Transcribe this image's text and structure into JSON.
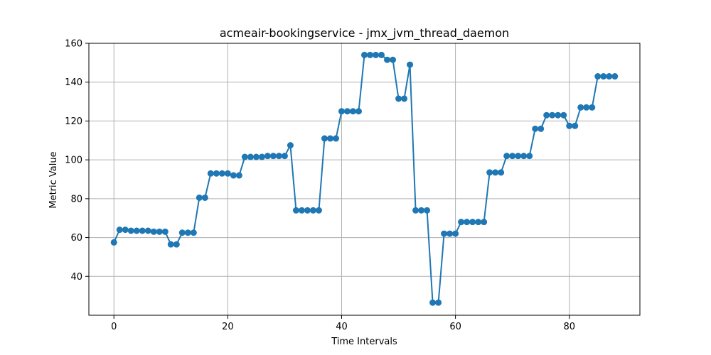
{
  "chart_data": {
    "type": "line",
    "title": "acmeair-bookingservice - jmx_jvm_thread_daemon",
    "xlabel": "Time Intervals",
    "ylabel": "Metric Value",
    "xlim": [
      -4.4,
      92.4
    ],
    "ylim": [
      20,
      160
    ],
    "xticks": [
      0,
      20,
      40,
      60,
      80
    ],
    "yticks": [
      40,
      60,
      80,
      100,
      120,
      140,
      160
    ],
    "grid": true,
    "marker": "circle",
    "color": "#1f77b4",
    "series": [
      {
        "x": [
          0,
          1,
          2,
          3,
          4,
          5,
          6,
          7,
          8,
          9,
          10,
          11,
          12,
          13,
          14,
          15,
          16,
          17,
          18,
          19,
          20,
          21,
          22,
          23,
          24,
          25,
          26,
          27,
          28,
          29,
          30,
          31,
          32,
          33,
          34,
          35,
          36,
          37,
          38,
          39,
          40,
          41,
          42,
          43,
          44,
          45,
          46,
          47,
          48,
          49,
          50,
          51,
          52,
          53,
          54,
          55,
          56,
          57,
          58,
          59,
          60,
          61,
          62,
          63,
          64,
          65,
          66,
          67,
          68,
          69,
          70,
          71,
          72,
          73,
          74,
          75,
          76,
          77,
          78,
          79,
          80,
          81,
          82,
          83,
          84,
          85,
          86,
          87,
          88
        ],
        "values": [
          57.5,
          64,
          64,
          63.5,
          63.5,
          63.5,
          63.5,
          63,
          63,
          63,
          56.5,
          56.5,
          62.5,
          62.5,
          62.5,
          80.5,
          80.5,
          93,
          93,
          93,
          93,
          92,
          92,
          101.5,
          101.5,
          101.5,
          101.5,
          102,
          102,
          102,
          102,
          107.5,
          74,
          74,
          74,
          74,
          74,
          111,
          111,
          111,
          125,
          125,
          125,
          125,
          154,
          154,
          154,
          154,
          151.5,
          151.5,
          131.5,
          131.5,
          149,
          74,
          74,
          74,
          26.5,
          26.5,
          62,
          62,
          62,
          68,
          68,
          68,
          68,
          68,
          93.5,
          93.5,
          93.5,
          102,
          102,
          102,
          102,
          102,
          116,
          116,
          123,
          123,
          123,
          123,
          117.5,
          117.5,
          127,
          127,
          127,
          143,
          143,
          143,
          143
        ]
      }
    ]
  }
}
